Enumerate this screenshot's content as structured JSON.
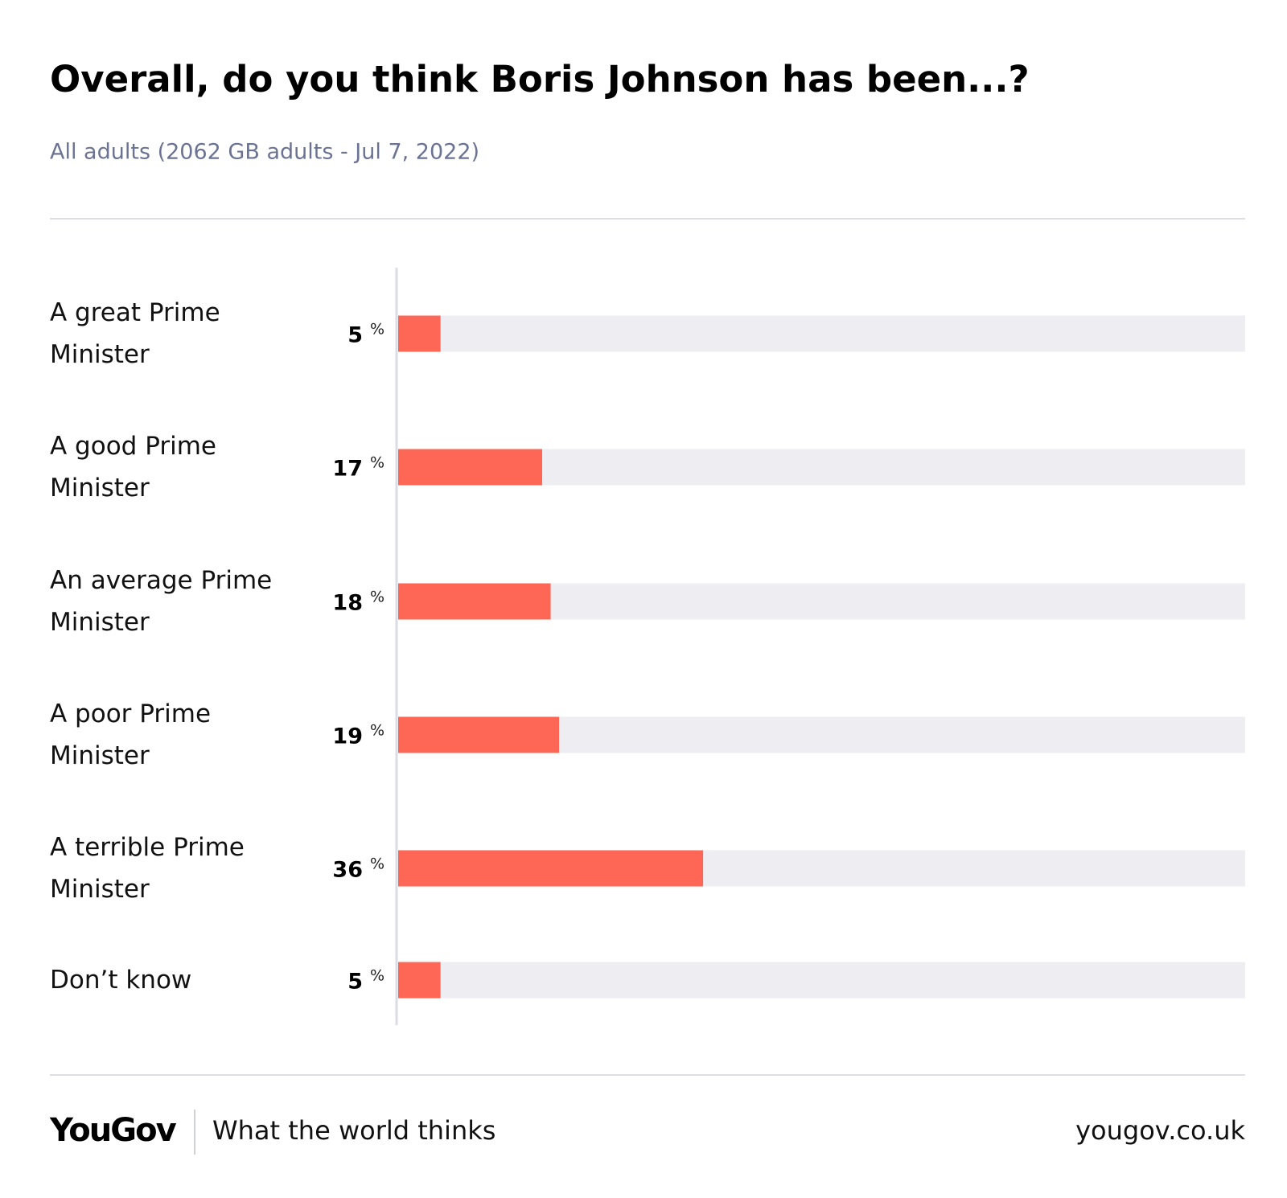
{
  "chart_data": {
    "type": "bar",
    "orientation": "horizontal",
    "title": "Overall, do you think Boris Johnson has been...?",
    "subtitle": "All adults (2062 GB adults - Jul 7, 2022)",
    "categories": [
      "A great Prime Minister",
      "A good Prime Minister",
      "An average Prime Minister",
      "A poor Prime Minister",
      "A terrible Prime Minister",
      "Don’t know"
    ],
    "values": [
      5,
      17,
      18,
      19,
      36,
      5
    ],
    "value_suffix": "%",
    "color": "#fe6756",
    "track_color": "#eeeef2",
    "xlim": [
      0,
      100
    ]
  },
  "footer": {
    "brand": "YouGov",
    "tagline": "What the world thinks",
    "url": "yougov.co.uk"
  }
}
